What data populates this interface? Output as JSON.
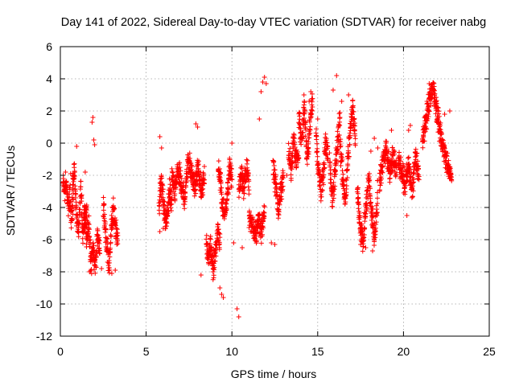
{
  "chart_data": {
    "type": "scatter",
    "title": "Day 141 of 2022, Sidereal Day-to-day VTEC variation (SDTVAR) for receiver nabg",
    "xlabel": "GPS time / hours",
    "ylabel": "SDTVAR / TECUs",
    "xlim": [
      0,
      25
    ],
    "ylim": [
      -12,
      6
    ],
    "xticks": [
      0,
      5,
      10,
      15,
      20,
      25
    ],
    "yticks": [
      -12,
      -10,
      -8,
      -6,
      -4,
      -2,
      0,
      2,
      4,
      6
    ],
    "grid": true,
    "marker": "+",
    "color": "#ff0000",
    "series": [
      {
        "name": "SDTVAR",
        "segments": [
          {
            "x0": 0.15,
            "x1": 0.75,
            "y": [
              -2.2,
              -3.0,
              -2.5,
              -4.0,
              -3.2,
              -4.8,
              -3.5
            ]
          },
          {
            "x0": 0.7,
            "x1": 1.55,
            "y": [
              -3.0,
              -1.5,
              -4.5,
              -5.5,
              -2.5,
              -5.8,
              -4.5,
              -4.0
            ]
          },
          {
            "x0": 1.4,
            "x1": 2.3,
            "y": [
              -4.5,
              -6.0,
              -5.0,
              -7.5,
              -6.5,
              -7.8,
              -5.5,
              -6.8
            ]
          },
          {
            "x0": 2.5,
            "x1": 3.35,
            "y": [
              -3.8,
              -5.5,
              -6.8,
              -7.5,
              -5.0,
              -4.0,
              -5.5,
              -6.0
            ]
          },
          {
            "x0": 5.75,
            "x1": 6.5,
            "y": [
              -4.0,
              -2.5,
              -3.5,
              -5.0,
              -4.5,
              -2.8,
              -3.8
            ]
          },
          {
            "x0": 6.5,
            "x1": 8.4,
            "y": [
              -2.0,
              -3.0,
              -1.5,
              -2.8,
              -3.5,
              -1.0,
              -2.0,
              -2.8,
              -1.5,
              -3.0,
              -2.2
            ]
          },
          {
            "x0": 8.5,
            "x1": 9.3,
            "y": [
              -6.0,
              -7.2,
              -6.5,
              -7.8,
              -6.8,
              -5.5,
              -6.0
            ]
          },
          {
            "x0": 9.2,
            "x1": 10.0,
            "y": [
              -1.5,
              -2.5,
              -4.0,
              -4.5,
              -3.0,
              -1.5,
              -2.2
            ]
          },
          {
            "x0": 10.4,
            "x1": 11.0,
            "y": [
              -3.0,
              -2.0,
              -2.8,
              -1.5,
              -2.5
            ]
          },
          {
            "x0": 11.0,
            "x1": 11.9,
            "y": [
              -4.5,
              -5.2,
              -5.8,
              -4.8,
              -5.5,
              -4.2
            ]
          },
          {
            "x0": 12.4,
            "x1": 13.0,
            "y": [
              -1.5,
              -2.5,
              -4.0,
              -3.0,
              -2.0
            ]
          },
          {
            "x0": 13.3,
            "x1": 13.9,
            "y": [
              -0.5,
              -1.5,
              0.0,
              -1.0,
              -0.8
            ]
          },
          {
            "x0": 13.9,
            "x1": 14.7,
            "y": [
              1.5,
              0.0,
              2.2,
              -1.0,
              1.0,
              2.8
            ]
          },
          {
            "x0": 14.9,
            "x1": 15.6,
            "y": [
              0.5,
              -1.5,
              -3.0,
              -2.0,
              0.0,
              -1.0
            ]
          },
          {
            "x0": 15.7,
            "x1": 16.3,
            "y": [
              -1.0,
              -3.5,
              -2.0,
              0.0,
              1.5
            ]
          },
          {
            "x0": 16.3,
            "x1": 17.2,
            "y": [
              0.0,
              -2.0,
              -3.8,
              -1.0,
              1.0,
              2.2,
              0.5
            ]
          },
          {
            "x0": 17.3,
            "x1": 18.5,
            "y": [
              -3.0,
              -5.0,
              -6.2,
              -4.0,
              -2.0,
              -4.5,
              -5.8,
              -3.0
            ]
          },
          {
            "x0": 18.6,
            "x1": 19.6,
            "y": [
              -2.5,
              -1.0,
              -0.5,
              -1.8,
              -0.8,
              -1.5
            ]
          },
          {
            "x0": 19.7,
            "x1": 20.9,
            "y": [
              -1.0,
              -1.8,
              -2.5,
              -1.2,
              -3.0,
              -0.8,
              -2.0
            ]
          },
          {
            "x0": 21.1,
            "x1": 22.8,
            "y": [
              0.0,
              1.5,
              2.8,
              3.5,
              2.0,
              0.5,
              -0.5,
              -1.5,
              -2.0
            ]
          }
        ],
        "isolated_points": [
          [
            0.3,
            -1.8
          ],
          [
            0.6,
            -1.9
          ],
          [
            0.95,
            -0.2
          ],
          [
            1.45,
            -1.8
          ],
          [
            1.9,
            1.6
          ],
          [
            1.85,
            1.3
          ],
          [
            1.95,
            0.2
          ],
          [
            2.0,
            -0.1
          ],
          [
            1.7,
            -8.0
          ],
          [
            3.2,
            -7.9
          ],
          [
            3.0,
            -8.1
          ],
          [
            2.4,
            -7.8
          ],
          [
            5.8,
            0.4
          ],
          [
            5.9,
            -0.3
          ],
          [
            6.0,
            -5.3
          ],
          [
            5.8,
            -5.5
          ],
          [
            7.9,
            1.2
          ],
          [
            8.0,
            1.0
          ],
          [
            8.2,
            -8.2
          ],
          [
            8.9,
            -8.0
          ],
          [
            9.3,
            -9.0
          ],
          [
            9.4,
            -9.4
          ],
          [
            9.5,
            -9.6
          ],
          [
            10.0,
            0.0
          ],
          [
            10.1,
            -6.2
          ],
          [
            10.3,
            -10.3
          ],
          [
            10.4,
            -10.8
          ],
          [
            10.6,
            -6.5
          ],
          [
            11.6,
            1.5
          ],
          [
            11.7,
            3.2
          ],
          [
            11.8,
            3.8
          ],
          [
            11.9,
            4.1
          ],
          [
            12.0,
            3.7
          ],
          [
            12.3,
            -6.2
          ],
          [
            12.5,
            -6.3
          ],
          [
            13.2,
            -2.0
          ],
          [
            14.2,
            3.0
          ],
          [
            14.5,
            2.6
          ],
          [
            14.6,
            3.2
          ],
          [
            15.0,
            1.5
          ],
          [
            15.9,
            3.3
          ],
          [
            16.1,
            4.2
          ],
          [
            16.4,
            2.6
          ],
          [
            16.8,
            3.0
          ],
          [
            17.5,
            -6.3
          ],
          [
            17.8,
            -6.5
          ],
          [
            18.2,
            -6.7
          ],
          [
            18.3,
            0.3
          ],
          [
            18.5,
            -0.3
          ],
          [
            18.1,
            -0.5
          ],
          [
            19.3,
            0.8
          ],
          [
            20.2,
            -4.5
          ],
          [
            20.4,
            1.1
          ],
          [
            20.3,
            0.8
          ],
          [
            21.5,
            3.7
          ],
          [
            21.6,
            3.6
          ],
          [
            22.4,
            1.8
          ],
          [
            22.7,
            2.0
          ],
          [
            22.7,
            -2.2
          ]
        ]
      }
    ]
  }
}
